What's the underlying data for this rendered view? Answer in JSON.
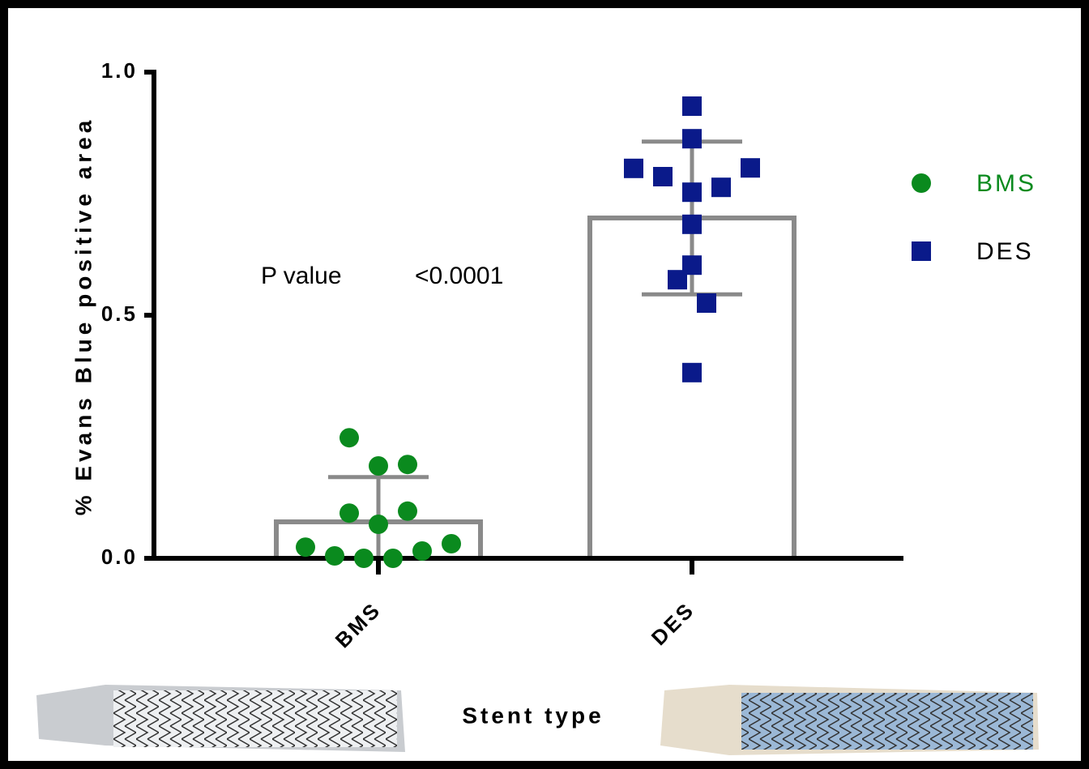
{
  "chart_data": {
    "type": "bar",
    "y_label": "% Evans Blue positive area",
    "x_label": "Stent type",
    "annotations": [
      "P value",
      "<0.0001"
    ],
    "categories": [
      "BMS",
      "DES"
    ],
    "bar_color": "#8a8a8a",
    "series": [
      {
        "name": "BMS",
        "color": "#0a8a1e",
        "marker": "circle",
        "mean": 0.075,
        "sd": 0.092,
        "points": [
          0.023,
          0.005,
          0.0,
          0.0,
          0.015,
          0.03,
          0.248,
          0.19,
          0.193,
          0.093,
          0.07,
          0.097
        ]
      },
      {
        "name": "DES",
        "color": "#0a1a8a",
        "marker": "square",
        "mean": 0.7,
        "sd": 0.157,
        "points": [
          0.93,
          0.863,
          0.802,
          0.785,
          0.803,
          0.753,
          0.763,
          0.687,
          0.603,
          0.573,
          0.525,
          0.382
        ]
      }
    ],
    "ylim": [
      0,
      1.0
    ],
    "yticks": [
      {
        "value": 0,
        "label": "0.0"
      },
      0.5,
      {
        "value": 1.0,
        "label": "1.0"
      }
    ]
  }
}
